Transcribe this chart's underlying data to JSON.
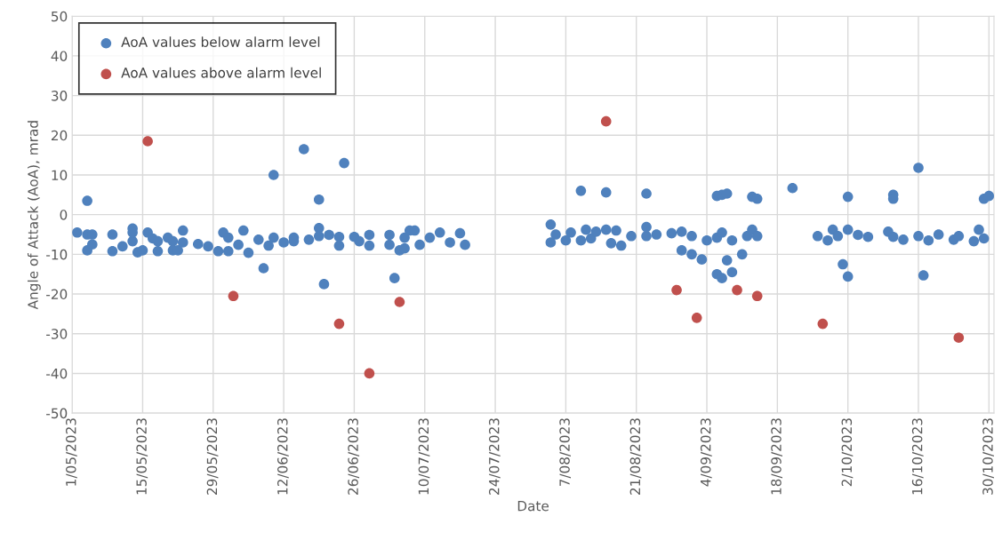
{
  "chart_data": {
    "type": "scatter",
    "xlabel": "Date",
    "ylabel": "Angle of Attack (AoA), mrad",
    "xlim": [
      "2023-05-01",
      "2023-10-31"
    ],
    "ylim": [
      -50,
      50
    ],
    "xticks": [
      {
        "value": "2023-05-01",
        "label": "1/05/2023"
      },
      {
        "value": "2023-05-15",
        "label": "15/05/2023"
      },
      {
        "value": "2023-05-29",
        "label": "29/05/2023"
      },
      {
        "value": "2023-06-12",
        "label": "12/06/2023"
      },
      {
        "value": "2023-06-26",
        "label": "26/06/2023"
      },
      {
        "value": "2023-07-10",
        "label": "10/07/2023"
      },
      {
        "value": "2023-07-24",
        "label": "24/07/2023"
      },
      {
        "value": "2023-08-07",
        "label": "7/08/2023"
      },
      {
        "value": "2023-08-21",
        "label": "21/08/2023"
      },
      {
        "value": "2023-09-04",
        "label": "4/09/2023"
      },
      {
        "value": "2023-09-18",
        "label": "18/09/2023"
      },
      {
        "value": "2023-10-02",
        "label": "2/10/2023"
      },
      {
        "value": "2023-10-16",
        "label": "16/10/2023"
      },
      {
        "value": "2023-10-30",
        "label": "30/10/2023"
      }
    ],
    "yticks": [
      -50,
      -40,
      -30,
      -20,
      -10,
      0,
      10,
      20,
      30,
      40,
      50
    ],
    "grid": true,
    "legend": "top left",
    "marker": "circle",
    "series": [
      {
        "name": "AoA values below alarm level",
        "color": "#4f81bd",
        "x": [
          "2023-05-02",
          "2023-05-04",
          "2023-05-04",
          "2023-05-04",
          "2023-05-05",
          "2023-05-05",
          "2023-05-09",
          "2023-05-09",
          "2023-05-11",
          "2023-05-13",
          "2023-05-13",
          "2023-05-13",
          "2023-05-14",
          "2023-05-15",
          "2023-05-16",
          "2023-05-17",
          "2023-05-18",
          "2023-05-18",
          "2023-05-20",
          "2023-05-21",
          "2023-05-21",
          "2023-05-22",
          "2023-05-23",
          "2023-05-23",
          "2023-05-26",
          "2023-05-28",
          "2023-05-30",
          "2023-05-31",
          "2023-06-01",
          "2023-06-01",
          "2023-06-03",
          "2023-06-04",
          "2023-06-05",
          "2023-06-07",
          "2023-06-08",
          "2023-06-09",
          "2023-06-10",
          "2023-06-10",
          "2023-06-12",
          "2023-06-14",
          "2023-06-14",
          "2023-06-16",
          "2023-06-17",
          "2023-06-19",
          "2023-06-19",
          "2023-06-19",
          "2023-06-20",
          "2023-06-21",
          "2023-06-23",
          "2023-06-23",
          "2023-06-24",
          "2023-06-26",
          "2023-06-27",
          "2023-06-29",
          "2023-06-29",
          "2023-07-03",
          "2023-07-03",
          "2023-07-04",
          "2023-07-05",
          "2023-07-06",
          "2023-07-06",
          "2023-07-07",
          "2023-07-08",
          "2023-07-09",
          "2023-07-11",
          "2023-07-13",
          "2023-07-15",
          "2023-07-17",
          "2023-07-18",
          "2023-08-04",
          "2023-08-04",
          "2023-08-05",
          "2023-08-07",
          "2023-08-08",
          "2023-08-10",
          "2023-08-10",
          "2023-08-11",
          "2023-08-12",
          "2023-08-13",
          "2023-08-15",
          "2023-08-15",
          "2023-08-16",
          "2023-08-17",
          "2023-08-18",
          "2023-08-20",
          "2023-08-23",
          "2023-08-23",
          "2023-08-23",
          "2023-08-25",
          "2023-08-28",
          "2023-08-30",
          "2023-08-30",
          "2023-09-01",
          "2023-09-01",
          "2023-09-03",
          "2023-09-04",
          "2023-09-06",
          "2023-09-06",
          "2023-09-06",
          "2023-09-07",
          "2023-09-07",
          "2023-09-07",
          "2023-09-08",
          "2023-09-08",
          "2023-09-09",
          "2023-09-09",
          "2023-09-11",
          "2023-09-12",
          "2023-09-13",
          "2023-09-13",
          "2023-09-14",
          "2023-09-14",
          "2023-09-21",
          "2023-09-26",
          "2023-09-28",
          "2023-09-29",
          "2023-09-30",
          "2023-10-01",
          "2023-10-02",
          "2023-10-02",
          "2023-10-02",
          "2023-10-04",
          "2023-10-06",
          "2023-10-10",
          "2023-10-11",
          "2023-10-11",
          "2023-10-11",
          "2023-10-13",
          "2023-10-16",
          "2023-10-16",
          "2023-10-17",
          "2023-10-18",
          "2023-10-20",
          "2023-10-23",
          "2023-10-24",
          "2023-10-27",
          "2023-10-28",
          "2023-10-29",
          "2023-10-29",
          "2023-10-30"
        ],
        "values": [
          -4.5,
          -5,
          -9,
          3.5,
          -5,
          -7.5,
          -5,
          -9.2,
          -8,
          -3.5,
          -6.7,
          -4.5,
          -9.5,
          -9,
          -4.5,
          -6,
          -6.7,
          -9.2,
          -5.8,
          -6.7,
          -9,
          -9,
          -7,
          -4,
          -7.4,
          -8,
          -9.2,
          -4.5,
          -9.2,
          -5.8,
          -7.6,
          -4,
          -9.6,
          -6.3,
          -13.5,
          -7.8,
          10,
          -5.8,
          -7,
          -5.8,
          -6.7,
          16.5,
          -6.3,
          -3.4,
          -5.4,
          3.8,
          -17.5,
          -5.1,
          -7.8,
          -5.6,
          13,
          -5.6,
          -6.7,
          -7.8,
          -5.1,
          -5.1,
          -7.6,
          -16,
          -9,
          -5.8,
          -8.5,
          -4,
          -4,
          -7.6,
          -5.8,
          -4.5,
          -7,
          -4.7,
          -7.6,
          -2.5,
          -7,
          -5,
          -6.5,
          -4.5,
          -6.5,
          6,
          -3.8,
          -6,
          -4.3,
          -3.8,
          5.6,
          -7.2,
          -4,
          -7.8,
          -5.4,
          -5.4,
          5.3,
          -3.1,
          -5,
          -4.7,
          -9,
          -4.3,
          -5.4,
          -10,
          -11.3,
          -6.5,
          -5.8,
          4.7,
          -15,
          -16,
          5,
          -4.5,
          -11.5,
          5.3,
          -14.5,
          -6.5,
          -10,
          -5.4,
          4.5,
          -3.8,
          4,
          -5.4,
          6.7,
          -5.4,
          -6.5,
          -3.8,
          -5.4,
          -12.5,
          -15.6,
          -3.8,
          4.5,
          -5.1,
          -5.6,
          -4.3,
          5,
          -5.6,
          4,
          -6.3,
          11.8,
          -5.4,
          -15.3,
          -6.5,
          -5,
          -6.3,
          -5.4,
          -6.7,
          -3.8,
          -6,
          4,
          4.7
        ]
      },
      {
        "name": "AoA values above alarm level",
        "color": "#c0504d",
        "x": [
          "2023-05-16",
          "2023-06-02",
          "2023-06-23",
          "2023-06-29",
          "2023-07-05",
          "2023-08-15",
          "2023-08-29",
          "2023-09-02",
          "2023-09-10",
          "2023-09-14",
          "2023-09-27",
          "2023-10-24"
        ],
        "values": [
          18.5,
          -20.5,
          -27.5,
          -40,
          -22,
          23.5,
          -19,
          -26,
          -19,
          -20.5,
          -27.5,
          -31
        ]
      }
    ]
  }
}
